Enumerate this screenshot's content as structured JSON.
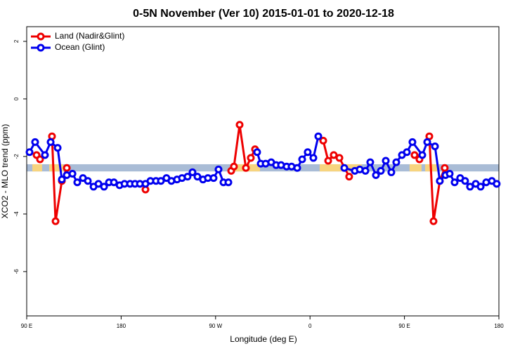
{
  "chart_data": {
    "type": "line",
    "title": "0-5N November (Ver 10)   2015-01-01 to 2020-12-18",
    "xlabel": "Longitude (deg E)",
    "ylabel": "XCO2 - MLO trend (ppm)",
    "xlim": [
      90,
      540
    ],
    "ylim": [
      -7.54,
      2.51
    ],
    "xticks": [
      {
        "value": 90,
        "label": "90 E"
      },
      180,
      {
        "value": 270,
        "label": "90 W"
      },
      {
        "value": 360,
        "label": "0"
      },
      {
        "value": 450,
        "label": "90 E"
      },
      {
        "value": 540,
        "label": "180"
      }
    ],
    "yticks": [
      2,
      0,
      -2,
      -4,
      -6
    ],
    "legend": "top-left",
    "band": {
      "ylim": [
        -2.52,
        -2.27
      ],
      "color": "#a9bcd6",
      "land_color": "#f7d47e",
      "land_ranges": [
        [
          95.4,
          104.7
        ],
        [
          111.4,
          124.8
        ],
        [
          285.5,
          312.3
        ],
        [
          369.2,
          409.4
        ],
        [
          454.9,
          466.3
        ],
        [
          469.7,
          483.1
        ]
      ]
    },
    "series": [
      {
        "name": "Land (Nadir&Glint)",
        "color": "#ee0000",
        "x": [
          99.4,
          102.7,
          null,
          114.1,
          117.5,
          123.5,
          128.2,
          null,
          203.2,
          null,
          284.9,
          287.5,
          292.9,
          298.9,
          303.6,
          307.6,
          null,
          372.6,
          377.3,
          382.6,
          388.0,
          397.3,
          null,
          459.6,
          464.3,
          null,
          473.7,
          477.7,
          483.7,
          488.4
        ],
        "values": [
          -1.95,
          -2.1,
          null,
          -1.3,
          -4.25,
          -2.85,
          -2.4,
          null,
          -3.15,
          null,
          -2.5,
          -2.35,
          -0.9,
          -2.4,
          -2.05,
          -1.75,
          null,
          -1.45,
          -2.15,
          -1.95,
          -2.05,
          -2.7,
          null,
          -1.95,
          -2.1,
          null,
          -1.3,
          -4.25,
          -2.85,
          -2.4
        ]
      },
      {
        "name": "Ocean (Glint)",
        "color": "#0000ee",
        "x": [
          92.7,
          98.0,
          107.4,
          112.8,
          119.5,
          123.5,
          128.2,
          133.6,
          138.2,
          143.6,
          148.3,
          153.7,
          158.4,
          163.7,
          168.4,
          173.1,
          178.5,
          183.2,
          188.5,
          193.2,
          197.9,
          203.2,
          207.9,
          213.2,
          217.9,
          223.2,
          227.9,
          233.3,
          238.0,
          243.3,
          248.0,
          252.7,
          258.0,
          262.7,
          268.1,
          272.8,
          277.5,
          282.2,
          null,
          309.6,
          313.0,
          317.7,
          323.0,
          327.7,
          332.4,
          337.7,
          342.4,
          347.8,
          352.5,
          357.8,
          363.2,
          367.9,
          null,
          392.7,
          402.7,
          407.4,
          412.8,
          417.4,
          422.8,
          427.5,
          432.2,
          437.5,
          442.2,
          447.6,
          452.3,
          457.6,
          467.0,
          471.7,
          479.1,
          483.7,
          489.1,
          493.1,
          497.8,
          503.1,
          507.8,
          512.5,
          517.9,
          522.6,
          527.9,
          533.3,
          537.9
        ],
        "values": [
          -1.85,
          -1.5,
          -1.95,
          -1.5,
          -1.7,
          -2.8,
          -2.65,
          -2.6,
          -2.9,
          -2.75,
          -2.85,
          -3.05,
          -2.95,
          -3.05,
          -2.9,
          -2.9,
          -3.0,
          -2.95,
          -2.95,
          -2.95,
          -2.95,
          -2.95,
          -2.85,
          -2.85,
          -2.85,
          -2.75,
          -2.85,
          -2.8,
          -2.75,
          -2.7,
          -2.55,
          -2.7,
          -2.8,
          -2.75,
          -2.75,
          -2.45,
          -2.9,
          -2.9,
          null,
          -1.85,
          -2.25,
          -2.25,
          -2.2,
          -2.3,
          -2.3,
          -2.35,
          -2.35,
          -2.4,
          -2.1,
          -1.85,
          -2.05,
          -1.3,
          null,
          -2.4,
          -2.5,
          -2.45,
          -2.5,
          -2.2,
          -2.65,
          -2.5,
          -2.15,
          -2.55,
          -2.2,
          -1.95,
          -1.85,
          -1.5,
          -1.95,
          -1.5,
          -1.65,
          -2.85,
          -2.65,
          -2.6,
          -2.9,
          -2.75,
          -2.85,
          -3.05,
          -2.95,
          -3.05,
          -2.9,
          -2.85,
          -2.95
        ]
      }
    ]
  }
}
